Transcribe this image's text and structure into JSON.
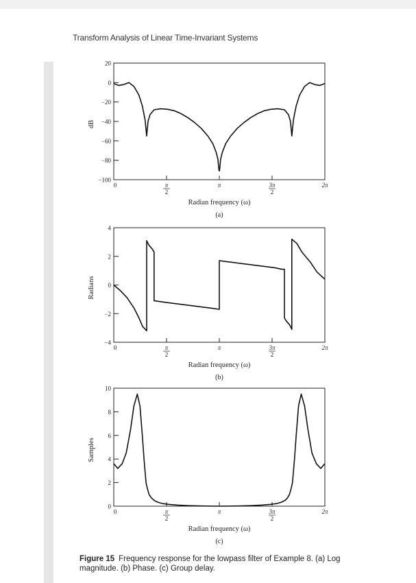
{
  "page": {
    "running_head": "Transform Analysis of Linear Time-Invariant Systems",
    "caption_label": "Figure 15",
    "caption_text": "Frequency response for the lowpass filter of Example 8. (a) Log magnitude. (b) Phase. (c) Group delay."
  },
  "chart_data": [
    {
      "type": "line",
      "ylabel": "dB",
      "xlabel": "Radian frequency (ω)",
      "panel_label": "(a)",
      "xlim": [
        0,
        6.2832
      ],
      "ylim": [
        -100,
        20
      ],
      "yticks": [
        -100,
        -80,
        -60,
        -40,
        -20,
        0,
        20
      ],
      "ytick_labels": [
        "−100",
        "−80",
        "−60",
        "−40",
        "−20",
        "0",
        "20"
      ],
      "xtick_labels": [
        "0",
        "π/2",
        "π",
        "3π/2",
        "2π"
      ],
      "series": [
        {
          "x": [
            0,
            0.15,
            0.3,
            0.45,
            0.6,
            0.75,
            0.85,
            0.93,
            0.98,
            1.02,
            1.08,
            1.2,
            1.4,
            1.6,
            1.8,
            2.0,
            2.2,
            2.4,
            2.6,
            2.8,
            2.95,
            3.05,
            3.1,
            3.13,
            3.1416,
            3.15,
            3.18,
            3.23,
            3.33,
            3.48,
            3.68,
            3.88,
            4.08,
            4.28,
            4.48,
            4.68,
            4.88,
            5.08,
            5.2,
            5.26,
            5.3,
            5.35,
            5.43,
            5.53,
            5.68,
            5.83,
            5.98,
            6.13,
            6.2832
          ],
          "y": [
            -1,
            -3,
            -2,
            0,
            -4,
            -13,
            -24,
            -38,
            -55,
            -40,
            -33,
            -28,
            -27,
            -27.5,
            -29,
            -32,
            -36,
            -41,
            -47,
            -55,
            -63,
            -72,
            -79,
            -90,
            -91,
            -90,
            -79,
            -72,
            -63,
            -55,
            -47,
            -41,
            -36,
            -32,
            -29,
            -27.5,
            -27,
            -28,
            -33,
            -40,
            -55,
            -38,
            -24,
            -13,
            -4,
            0,
            -2,
            -3,
            -1
          ]
        }
      ]
    },
    {
      "type": "line",
      "ylabel": "Radians",
      "xlabel": "Radian frequency (ω)",
      "panel_label": "(b)",
      "xlim": [
        0,
        6.2832
      ],
      "ylim": [
        -4,
        4
      ],
      "yticks": [
        -4,
        -2,
        0,
        2,
        4
      ],
      "ytick_labels": [
        "−4",
        "−2",
        "0",
        "2",
        "4"
      ],
      "xtick_labels": [
        "0",
        "π/2",
        "π",
        "3π/2",
        "2π"
      ],
      "series": [
        {
          "x": [
            0,
            0.2,
            0.4,
            0.6,
            0.75,
            0.86,
            0.98,
            0.98,
            1.04,
            1.15,
            1.2,
            1.2,
            1.5,
            2.0,
            2.5,
            3.0,
            3.1416,
            3.1416,
            3.3,
            3.8,
            4.3,
            4.8,
            5.0,
            5.08,
            5.08,
            5.13,
            5.24,
            5.3,
            5.3,
            5.45,
            5.6,
            5.85,
            6.05,
            6.2832
          ],
          "y": [
            0,
            -0.4,
            -0.9,
            -1.6,
            -2.3,
            -2.9,
            -3.2,
            3.1,
            2.8,
            2.5,
            2.3,
            -1.1,
            -1.2,
            -1.35,
            -1.5,
            -1.65,
            -1.7,
            1.7,
            1.65,
            1.5,
            1.35,
            1.2,
            1.1,
            1.1,
            -2.3,
            -2.5,
            -2.8,
            -3.1,
            3.2,
            2.9,
            2.3,
            1.6,
            0.9,
            0.4
          ]
        }
      ]
    },
    {
      "type": "line",
      "ylabel": "Samples",
      "xlabel": "Radian frequency (ω)",
      "panel_label": "(c)",
      "xlim": [
        0,
        6.2832
      ],
      "ylim": [
        0,
        10
      ],
      "yticks": [
        0,
        2,
        4,
        6,
        8,
        10
      ],
      "ytick_labels": [
        "0",
        "2",
        "4",
        "6",
        "8",
        "10"
      ],
      "xtick_labels": [
        "0",
        "π/2",
        "π",
        "3π/2",
        "2π"
      ],
      "series": [
        {
          "x": [
            0,
            0.12,
            0.25,
            0.37,
            0.5,
            0.6,
            0.7,
            0.78,
            0.85,
            0.9,
            0.93,
            0.96,
            1.0,
            1.05,
            1.12,
            1.2,
            1.3,
            1.45,
            1.65,
            1.9,
            2.2,
            2.6,
            3.1416,
            3.7,
            4.1,
            4.4,
            4.65,
            4.85,
            5.0,
            5.1,
            5.17,
            5.23,
            5.28,
            5.32,
            5.35,
            5.38,
            5.43,
            5.5,
            5.58,
            5.68,
            5.78,
            5.9,
            6.03,
            6.16,
            6.2832
          ],
          "y": [
            3.6,
            3.2,
            3.6,
            4.5,
            6.5,
            8.5,
            9.5,
            8.5,
            6.0,
            4.0,
            3.0,
            2.0,
            1.5,
            1.0,
            0.7,
            0.5,
            0.35,
            0.22,
            0.15,
            0.09,
            0.05,
            0.02,
            0.0,
            0.02,
            0.05,
            0.09,
            0.15,
            0.22,
            0.35,
            0.5,
            0.7,
            1.0,
            1.5,
            2.0,
            3.0,
            4.0,
            6.0,
            8.5,
            9.5,
            8.5,
            6.5,
            4.5,
            3.6,
            3.2,
            3.6
          ]
        }
      ]
    }
  ]
}
